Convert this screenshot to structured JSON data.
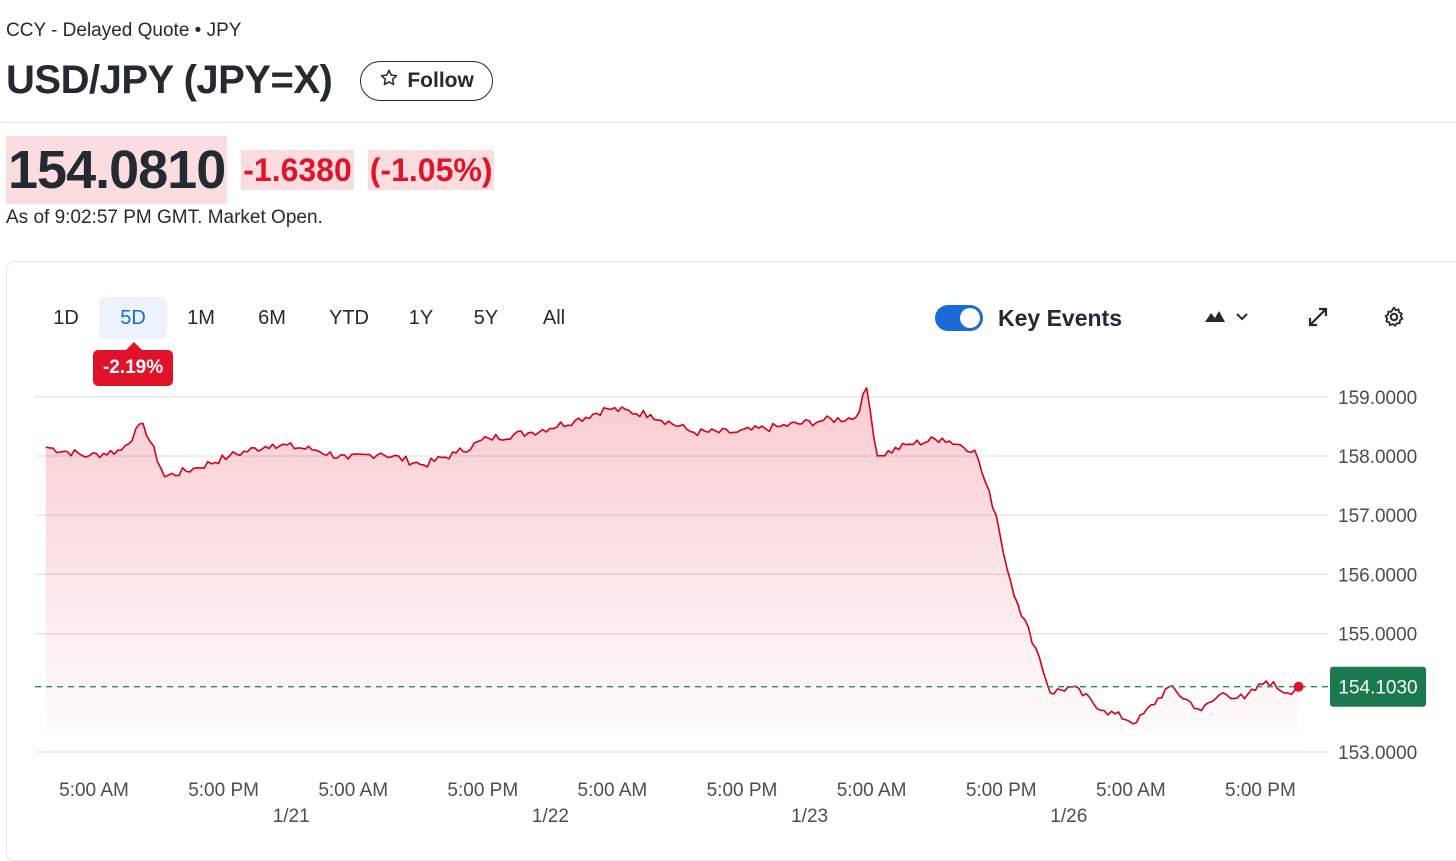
{
  "header": {
    "subtitle": "CCY - Delayed Quote • JPY",
    "title": "USD/JPY (JPY=X)",
    "follow_label": "Follow"
  },
  "quote": {
    "price": "154.0810",
    "change": "-1.6380",
    "change_pct": "(-1.05%)",
    "as_of": "As of 9:02:57 PM GMT. Market Open."
  },
  "toolbar": {
    "ranges": [
      "1D",
      "5D",
      "1M",
      "6M",
      "YTD",
      "1Y",
      "5Y",
      "All"
    ],
    "active_range": "5D",
    "range_change": "-2.19%",
    "key_events_label": "Key Events",
    "key_events_on": true
  },
  "colors": {
    "down": "#e0132a",
    "fill": "#fbdde0",
    "accent": "#1a6ad8",
    "current_price_bg": "#1a7a4e"
  },
  "icons": [
    "star-icon",
    "mountain-chart-icon",
    "chevron-down-icon",
    "expand-icon",
    "gear-icon"
  ],
  "chart_data": {
    "type": "area",
    "ylim": [
      153.0,
      159.0
    ],
    "y_ticks": [
      "159.0000",
      "158.0000",
      "157.0000",
      "156.0000",
      "155.0000",
      "153.0000"
    ],
    "y_tick_values": [
      159,
      158,
      157,
      156,
      155,
      153
    ],
    "x_time_labels": [
      "5:00 AM",
      "5:00 PM",
      "5:00 AM",
      "5:00 PM",
      "5:00 AM",
      "5:00 PM",
      "5:00 AM",
      "5:00 PM",
      "5:00 AM",
      "5:00 PM"
    ],
    "x_date_labels": [
      "1/21",
      "1/22",
      "1/23",
      "1/26"
    ],
    "current_value": 154.103,
    "current_label": "154.1030",
    "x": [
      "1/20 1:00 AM",
      "1/20 5:00 AM",
      "1/20 8:00 AM",
      "1/20 10:00 AM",
      "1/20 12:00 PM",
      "1/20 3:00 PM",
      "1/20 6:00 PM",
      "1/20 10:00 PM",
      "1/21 2:00 AM",
      "1/21 5:00 AM",
      "1/21 8:00 AM",
      "1/21 12:00 PM",
      "1/21 3:00 PM",
      "1/21 6:00 PM",
      "1/21 10:00 PM",
      "1/22 2:00 AM",
      "1/22 5:00 AM",
      "1/22 9:00 AM",
      "1/22 1:00 PM",
      "1/22 5:00 PM",
      "1/22 9:00 PM",
      "1/23 1:00 AM",
      "1/23 4:00 AM",
      "1/23 5:00 AM",
      "1/23 6:00 AM",
      "1/23 9:00 AM",
      "1/23 12:00 PM",
      "1/23 3:00 PM",
      "1/23 5:00 PM",
      "1/23 6:00 PM",
      "1/23 7:00 PM",
      "1/23 9:00 PM",
      "1/23 10:00 PM",
      "1/26 12:00 AM",
      "1/26 3:00 AM",
      "1/26 6:00 AM",
      "1/26 9:00 AM",
      "1/26 12:00 PM",
      "1/26 2:00 PM",
      "1/26 4:00 PM",
      "1/26 6:00 PM",
      "1/26 8:00 PM",
      "1/26 9:00 PM"
    ],
    "values": [
      158.15,
      158.0,
      158.1,
      158.55,
      157.65,
      157.8,
      158.0,
      158.2,
      158.1,
      157.95,
      158.05,
      157.85,
      158.05,
      158.3,
      158.4,
      158.6,
      158.8,
      158.7,
      158.4,
      158.4,
      158.5,
      158.6,
      158.65,
      159.15,
      158.0,
      158.2,
      158.3,
      158.1,
      157.0,
      156.1,
      155.5,
      154.6,
      154.0,
      154.1,
      153.7,
      153.5,
      154.1,
      153.7,
      154.0,
      153.9,
      154.2,
      154.0,
      154.103
    ]
  }
}
